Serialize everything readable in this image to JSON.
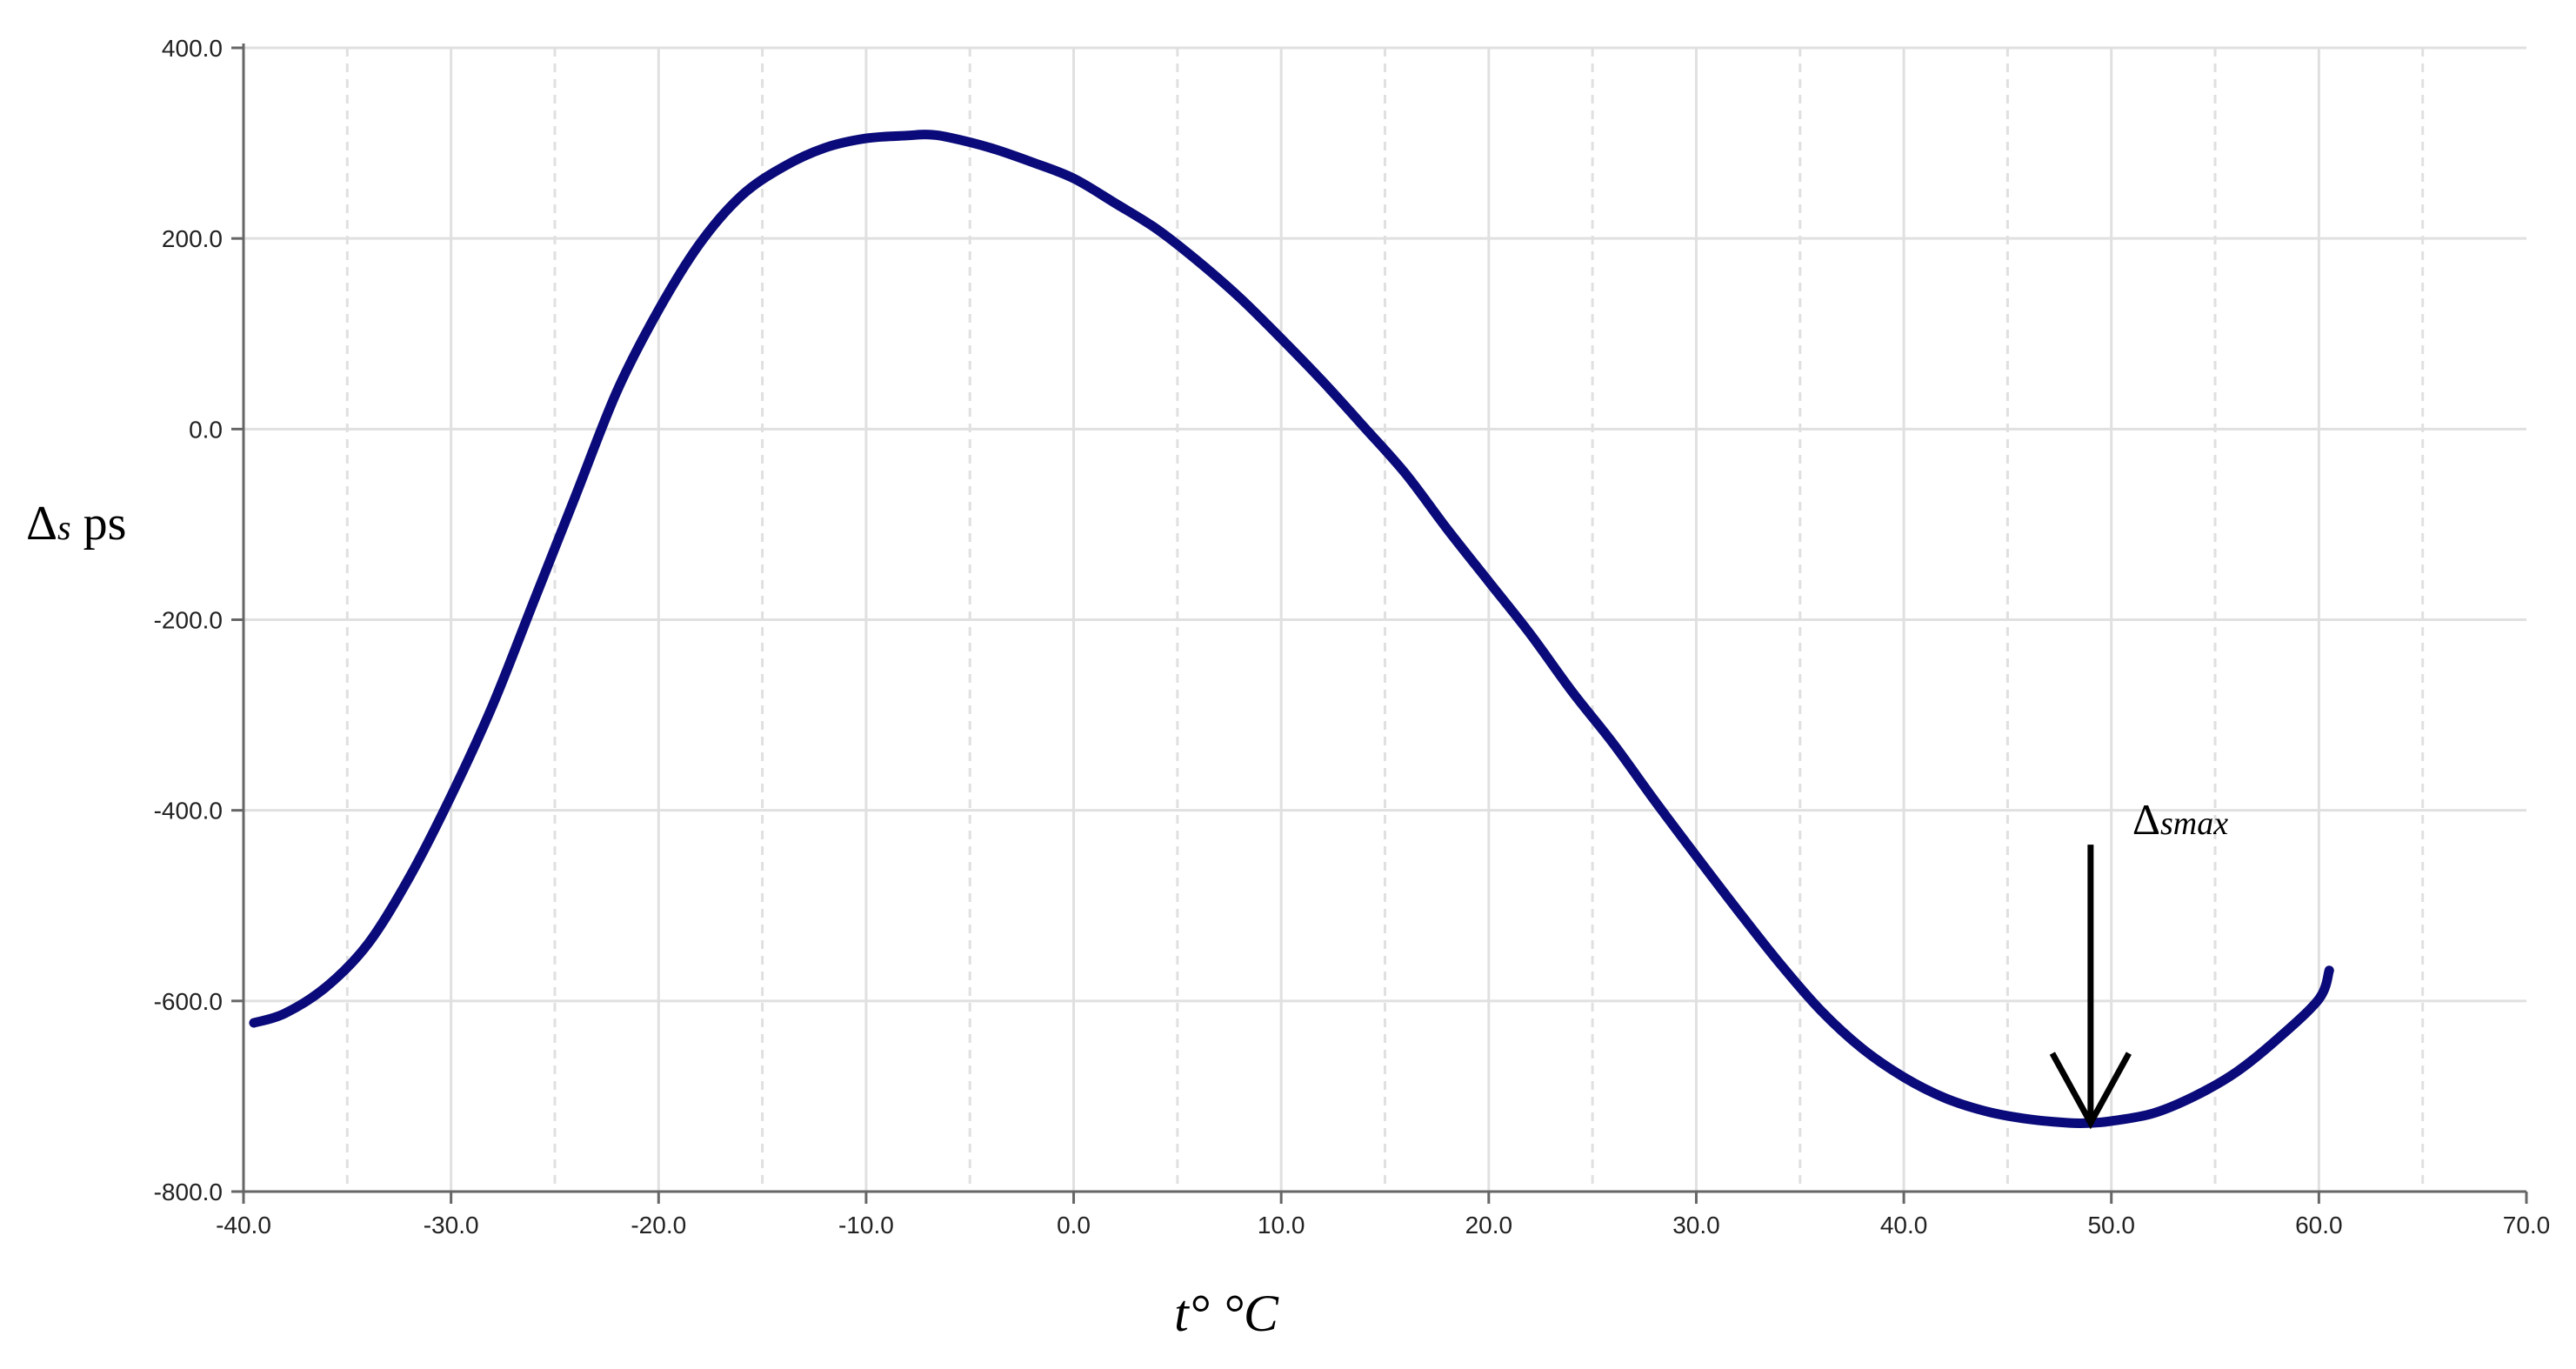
{
  "chart_data": {
    "type": "line",
    "title": "",
    "xlabel": "t° °C",
    "ylabel": "Δs ps",
    "xlim": [
      -40,
      70
    ],
    "ylim": [
      -800,
      400
    ],
    "xticks": [
      "-40.0",
      "-30.0",
      "-20.0",
      "-10.0",
      "0.0",
      "10.0",
      "20.0",
      "30.0",
      "40.0",
      "50.0",
      "60.0",
      "70.0"
    ],
    "yticks": [
      "400.0",
      "200.0",
      "0.0",
      "-200.0",
      "-400.0",
      "-600.0",
      "-800.0"
    ],
    "grid": true,
    "legend": "none",
    "series": [
      {
        "color": "#0a0a7a",
        "x": [
          -39.5,
          -38,
          -36,
          -34,
          -32,
          -30,
          -28,
          -26,
          -24,
          -22,
          -20,
          -18,
          -16,
          -14,
          -12,
          -10,
          -8,
          -7,
          -6,
          -4,
          -2,
          0,
          2,
          4,
          6,
          8,
          10,
          12,
          14,
          16,
          18,
          20,
          22,
          24,
          26,
          28,
          30,
          32,
          34,
          36,
          38,
          40,
          42,
          44,
          46,
          48,
          49,
          50,
          52,
          54,
          56,
          58,
          60,
          60.5
        ],
        "y": [
          -623,
          -613,
          -585,
          -540,
          -470,
          -385,
          -290,
          -180,
          -70,
          40,
          125,
          195,
          245,
          275,
          295,
          305,
          308,
          309,
          306,
          295,
          280,
          263,
          237,
          210,
          176,
          138,
          95,
          50,
          2,
          -47,
          -105,
          -160,
          -215,
          -275,
          -330,
          -390,
          -448,
          -505,
          -560,
          -610,
          -650,
          -680,
          -702,
          -716,
          -724,
          -728,
          -728,
          -726,
          -718,
          -700,
          -675,
          -640,
          -598,
          -568
        ]
      }
    ],
    "annotations": [
      {
        "text": "Δsmax",
        "main": "Δ",
        "sub": "smax",
        "x": 49,
        "y": -728
      }
    ]
  }
}
